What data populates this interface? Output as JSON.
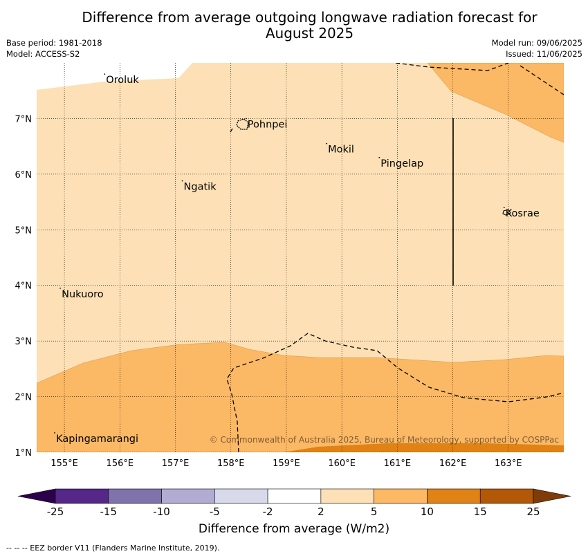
{
  "title": "Difference from average outgoing longwave radiation forecast for August 2025",
  "title_lines": [
    "Difference from average outgoing longwave radiation forecast for",
    "August 2025"
  ],
  "meta_left": [
    "Base period: 1981-2018",
    "Model: ACCESS-S2"
  ],
  "meta_right": [
    "Model run: 09/06/2025",
    "Issued: 11/06/2025"
  ],
  "map": {
    "lon_range": [
      154.5,
      164.0
    ],
    "lat_range": [
      1.0,
      8.0
    ],
    "lon_ticks": [
      "155°E",
      "156°E",
      "157°E",
      "158°E",
      "159°E",
      "160°E",
      "161°E",
      "162°E",
      "163°E"
    ],
    "lat_ticks": [
      "1°N",
      "2°N",
      "3°N",
      "4°N",
      "5°N",
      "6°N",
      "7°N"
    ],
    "places": [
      {
        "name": "Oroluk",
        "lon": 155.75,
        "lat": 7.7
      },
      {
        "name": "Pohnpei",
        "lon": 158.3,
        "lat": 6.9
      },
      {
        "name": "Mokil",
        "lon": 159.75,
        "lat": 6.45
      },
      {
        "name": "Pingelap",
        "lon": 160.7,
        "lat": 6.2
      },
      {
        "name": "Ngatik",
        "lon": 157.15,
        "lat": 5.78
      },
      {
        "name": "Kosrae",
        "lon": 162.95,
        "lat": 5.3
      },
      {
        "name": "Nukuoro",
        "lon": 154.95,
        "lat": 3.85
      },
      {
        "name": "Kapingamarangi",
        "lon": 154.85,
        "lat": 1.25
      }
    ],
    "copyright": "© Commonwealth of Australia 2025, Bureau of Meteorology, supported by COSPPac",
    "colors": {
      "band_2_5": "#fde0b5",
      "band_5_10": "#fbb865",
      "band_10_15": "#e08214"
    }
  },
  "colorbar": {
    "labels": [
      "-25",
      "-15",
      "-10",
      "-5",
      "-2",
      "2",
      "5",
      "10",
      "15",
      "25"
    ],
    "colors": [
      "#2d004b",
      "#542788",
      "#8073ac",
      "#b2abd2",
      "#d8daeb",
      "#ffffff",
      "#fee0b6",
      "#fdb863",
      "#e08214",
      "#b35806",
      "#7f3b08"
    ],
    "title": "Difference from average (W/m2)"
  },
  "footer": "--  --  -- EEZ border V11 (Flanders Marine Institute, 2019)."
}
